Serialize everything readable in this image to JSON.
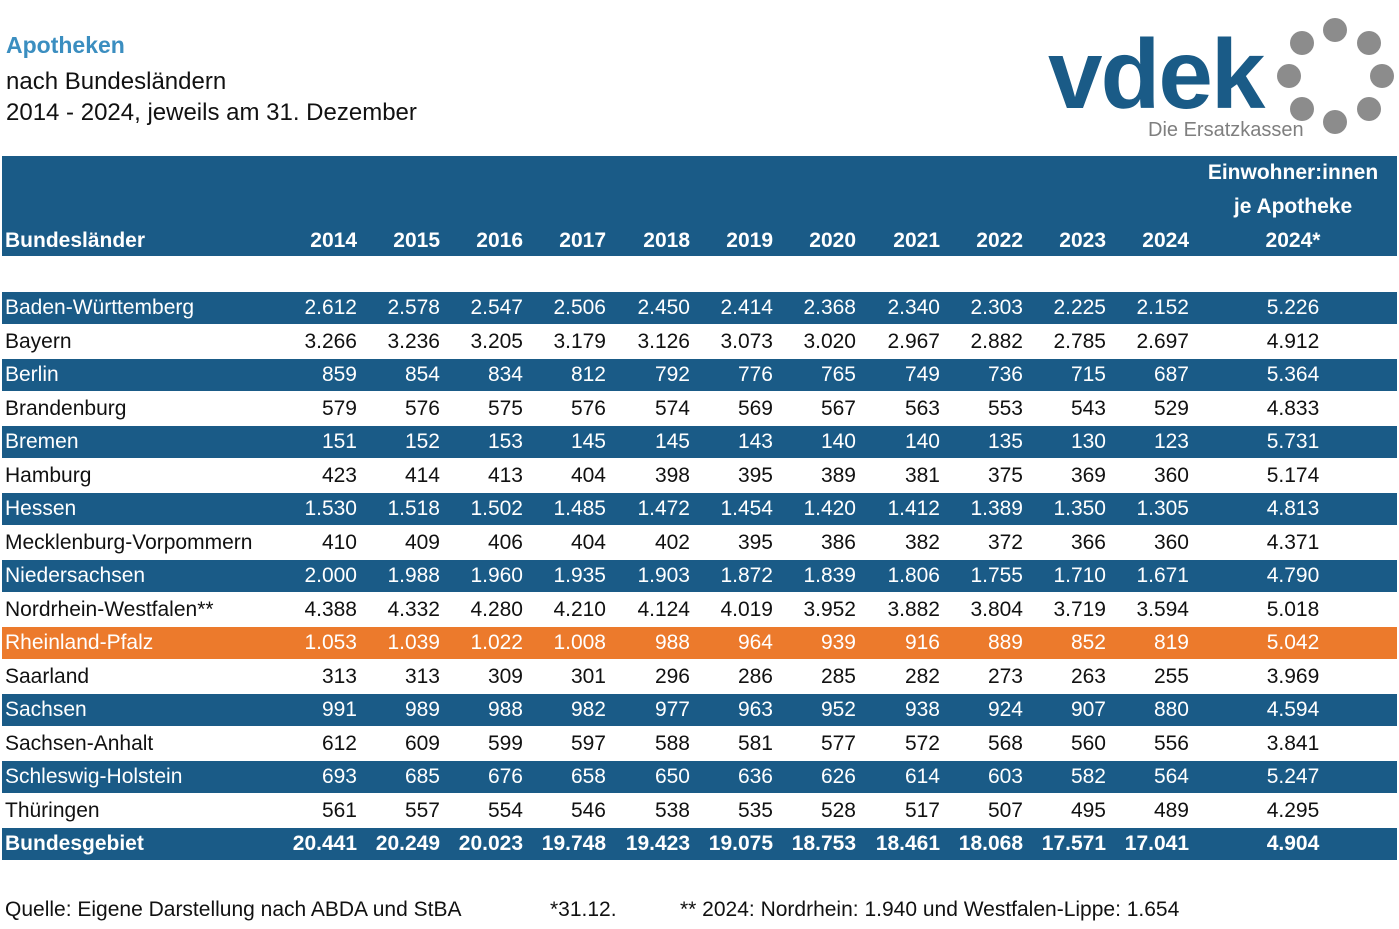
{
  "header": {
    "title": "Apotheken",
    "subtitle_lines": [
      "nach Bundesländern",
      "2014 - 2024, jeweils am 31. Dezember"
    ]
  },
  "logo": {
    "wordmark": "vdek",
    "tagline": "Die Ersatzkassen"
  },
  "table": {
    "columns": [
      "Bundesländer",
      "2014",
      "2015",
      "2016",
      "2017",
      "2018",
      "2019",
      "2020",
      "2021",
      "2022",
      "2023",
      "2024"
    ],
    "last_column": [
      "Einwohner:innen",
      "je Apotheke",
      "2024*"
    ],
    "rows": [
      {
        "name": "Baden-Württemberg",
        "values": [
          "2.612",
          "2.578",
          "2.547",
          "2.506",
          "2.450",
          "2.414",
          "2.368",
          "2.340",
          "2.303",
          "2.225",
          "2.152"
        ],
        "per_pharmacy": "5.226"
      },
      {
        "name": "Bayern",
        "values": [
          "3.266",
          "3.236",
          "3.205",
          "3.179",
          "3.126",
          "3.073",
          "3.020",
          "2.967",
          "2.882",
          "2.785",
          "2.697"
        ],
        "per_pharmacy": "4.912"
      },
      {
        "name": "Berlin",
        "values": [
          "859",
          "854",
          "834",
          "812",
          "792",
          "776",
          "765",
          "749",
          "736",
          "715",
          "687"
        ],
        "per_pharmacy": "5.364"
      },
      {
        "name": "Brandenburg",
        "values": [
          "579",
          "576",
          "575",
          "576",
          "574",
          "569",
          "567",
          "563",
          "553",
          "543",
          "529"
        ],
        "per_pharmacy": "4.833"
      },
      {
        "name": "Bremen",
        "values": [
          "151",
          "152",
          "153",
          "145",
          "145",
          "143",
          "140",
          "140",
          "135",
          "130",
          "123"
        ],
        "per_pharmacy": "5.731"
      },
      {
        "name": "Hamburg",
        "values": [
          "423",
          "414",
          "413",
          "404",
          "398",
          "395",
          "389",
          "381",
          "375",
          "369",
          "360"
        ],
        "per_pharmacy": "5.174"
      },
      {
        "name": "Hessen",
        "values": [
          "1.530",
          "1.518",
          "1.502",
          "1.485",
          "1.472",
          "1.454",
          "1.420",
          "1.412",
          "1.389",
          "1.350",
          "1.305"
        ],
        "per_pharmacy": "4.813"
      },
      {
        "name": "Mecklenburg-Vorpommern",
        "values": [
          "410",
          "409",
          "406",
          "404",
          "402",
          "395",
          "386",
          "382",
          "372",
          "366",
          "360"
        ],
        "per_pharmacy": "4.371"
      },
      {
        "name": "Niedersachsen",
        "values": [
          "2.000",
          "1.988",
          "1.960",
          "1.935",
          "1.903",
          "1.872",
          "1.839",
          "1.806",
          "1.755",
          "1.710",
          "1.671"
        ],
        "per_pharmacy": "4.790"
      },
      {
        "name": "Nordrhein-Westfalen**",
        "values": [
          "4.388",
          "4.332",
          "4.280",
          "4.210",
          "4.124",
          "4.019",
          "3.952",
          "3.882",
          "3.804",
          "3.719",
          "3.594"
        ],
        "per_pharmacy": "5.018"
      },
      {
        "name": "Rheinland-Pfalz",
        "values": [
          "1.053",
          "1.039",
          "1.022",
          "1.008",
          "988",
          "964",
          "939",
          "916",
          "889",
          "852",
          "819"
        ],
        "per_pharmacy": "5.042",
        "highlight": true
      },
      {
        "name": "Saarland",
        "values": [
          "313",
          "313",
          "309",
          "301",
          "296",
          "286",
          "285",
          "282",
          "273",
          "263",
          "255"
        ],
        "per_pharmacy": "3.969"
      },
      {
        "name": "Sachsen",
        "values": [
          "991",
          "989",
          "988",
          "982",
          "977",
          "963",
          "952",
          "938",
          "924",
          "907",
          "880"
        ],
        "per_pharmacy": "4.594"
      },
      {
        "name": "Sachsen-Anhalt",
        "values": [
          "612",
          "609",
          "599",
          "597",
          "588",
          "581",
          "577",
          "572",
          "568",
          "560",
          "556"
        ],
        "per_pharmacy": "3.841"
      },
      {
        "name": "Schleswig-Holstein",
        "values": [
          "693",
          "685",
          "676",
          "658",
          "650",
          "636",
          "626",
          "614",
          "603",
          "582",
          "564"
        ],
        "per_pharmacy": "5.247"
      },
      {
        "name": "Thüringen",
        "values": [
          "561",
          "557",
          "554",
          "546",
          "538",
          "535",
          "528",
          "517",
          "507",
          "495",
          "489"
        ],
        "per_pharmacy": "4.295"
      }
    ],
    "total": {
      "name": "Bundesgebiet",
      "values": [
        "20.441",
        "20.249",
        "20.023",
        "19.748",
        "19.423",
        "19.075",
        "18.753",
        "18.461",
        "18.068",
        "17.571",
        "17.041"
      ],
      "per_pharmacy": "4.904"
    }
  },
  "footer": [
    "Quelle: Eigene Darstellung nach ABDA und StBA",
    "*31.12.",
    "** 2024: Nordrhein: 1.940 und Westfalen-Lippe: 1.654"
  ]
}
